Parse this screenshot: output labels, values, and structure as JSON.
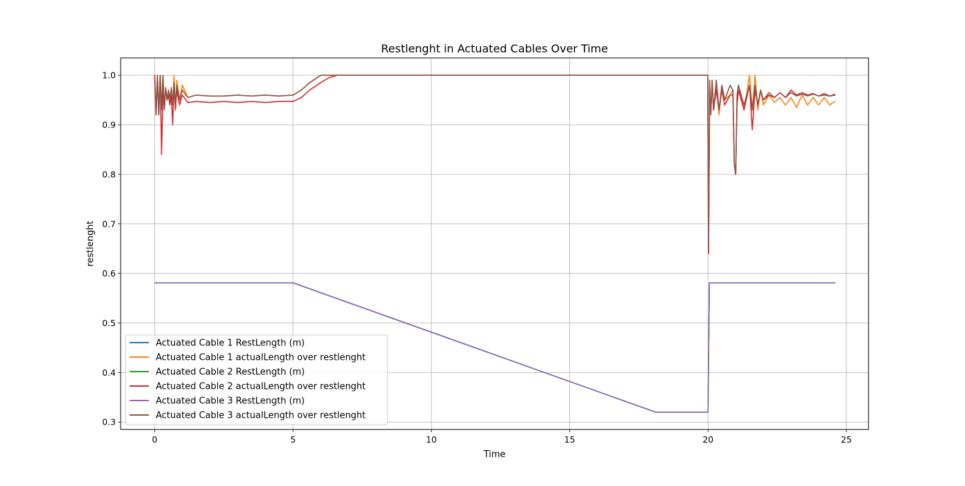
{
  "chart_data": {
    "type": "line",
    "title": "Restlenght in Actuated Cables Over Time",
    "xlabel": "Time",
    "ylabel": "restlenght",
    "xlim": [
      -1.23,
      25.8
    ],
    "ylim": [
      0.285,
      1.035
    ],
    "x_ticks": [
      0,
      5,
      10,
      15,
      20,
      25
    ],
    "y_ticks": [
      0.3,
      0.4,
      0.5,
      0.6,
      0.7,
      0.8,
      0.9,
      1.0
    ],
    "x_tick_labels": [
      "0",
      "5",
      "10",
      "15",
      "20",
      "25"
    ],
    "y_tick_labels": [
      "0.3",
      "0.4",
      "0.5",
      "0.6",
      "0.7",
      "0.8",
      "0.9",
      "1.0"
    ],
    "grid": true,
    "legend_position": "lower-left",
    "series": [
      {
        "name": "Actuated Cable 1 RestLength (m)",
        "color": "#1f77b4",
        "x": [
          0,
          5,
          18.1,
          20,
          20.05,
          24.6
        ],
        "y": [
          0.581,
          0.581,
          0.32,
          0.32,
          0.581,
          0.581
        ]
      },
      {
        "name": "Actuated Cable 1 actualLength over restlenght",
        "color": "#ff7f0e",
        "x": [
          0,
          0.05,
          0.1,
          0.15,
          0.2,
          0.25,
          0.3,
          0.35,
          0.4,
          0.45,
          0.5,
          0.55,
          0.6,
          0.65,
          0.7,
          0.75,
          0.8,
          0.9,
          1.0,
          1.2,
          1.5,
          2.0,
          2.5,
          3.0,
          3.5,
          4.0,
          4.5,
          5.0,
          5.3,
          5.6,
          6.0,
          6.3,
          6.6,
          7.0,
          10,
          15,
          19.99,
          20.02,
          20.06,
          20.1,
          20.15,
          20.2,
          20.3,
          20.4,
          20.5,
          20.6,
          20.8,
          20.9,
          20.95,
          21.0,
          21.05,
          21.1,
          21.3,
          21.5,
          21.6,
          21.7,
          21.8,
          21.9,
          22.0,
          22.2,
          22.4,
          22.6,
          22.8,
          23.0,
          23.2,
          23.4,
          23.6,
          23.8,
          24.0,
          24.2,
          24.4,
          24.6
        ],
        "y": [
          1.0,
          0.93,
          1.0,
          0.92,
          1.0,
          0.93,
          1.0,
          0.94,
          0.975,
          0.95,
          0.97,
          0.955,
          0.97,
          0.94,
          1.0,
          0.93,
          0.99,
          0.95,
          0.98,
          0.955,
          0.96,
          0.958,
          0.958,
          0.96,
          0.958,
          0.96,
          0.958,
          0.96,
          0.97,
          0.985,
          1.0,
          1.0,
          1.0,
          1.0,
          1.0,
          1.0,
          1.0,
          0.64,
          0.98,
          0.92,
          0.99,
          0.93,
          0.98,
          0.92,
          0.98,
          0.95,
          0.96,
          0.97,
          0.82,
          0.8,
          0.95,
          0.98,
          0.93,
          1.0,
          0.93,
          1.0,
          0.93,
          0.97,
          0.94,
          0.96,
          0.945,
          0.955,
          0.94,
          0.955,
          0.935,
          0.96,
          0.94,
          0.955,
          0.94,
          0.955,
          0.94,
          0.948
        ]
      },
      {
        "name": "Actuated Cable 2 RestLength (m)",
        "color": "#2ca02c",
        "x": [
          0,
          5,
          18.1,
          20,
          20.05,
          24.6
        ],
        "y": [
          0.581,
          0.581,
          0.32,
          0.32,
          0.581,
          0.581
        ]
      },
      {
        "name": "Actuated Cable 2 actualLength over restlenght",
        "color": "#d62728",
        "x": [
          0,
          0.05,
          0.1,
          0.15,
          0.2,
          0.25,
          0.3,
          0.35,
          0.4,
          0.45,
          0.5,
          0.55,
          0.6,
          0.65,
          0.7,
          0.75,
          0.8,
          0.9,
          1.0,
          1.2,
          1.5,
          2.0,
          2.5,
          3.0,
          3.5,
          4.0,
          4.5,
          5.0,
          5.3,
          5.6,
          6.0,
          6.3,
          6.6,
          7.0,
          10,
          15,
          19.99,
          20.02,
          20.06,
          20.1,
          20.15,
          20.2,
          20.3,
          20.4,
          20.5,
          20.6,
          20.8,
          20.9,
          20.95,
          21.0,
          21.05,
          21.1,
          21.3,
          21.5,
          21.6,
          21.7,
          21.8,
          21.9,
          22.0,
          22.2,
          22.4,
          22.6,
          22.8,
          23.0,
          23.2,
          23.4,
          23.6,
          23.8,
          24.0,
          24.2,
          24.4,
          24.6
        ],
        "y": [
          1.0,
          0.92,
          0.99,
          0.93,
          1.0,
          0.84,
          0.97,
          0.93,
          0.97,
          0.95,
          0.96,
          0.94,
          0.96,
          0.9,
          0.98,
          0.93,
          0.97,
          0.94,
          0.96,
          0.945,
          0.947,
          0.945,
          0.947,
          0.945,
          0.947,
          0.945,
          0.947,
          0.947,
          0.955,
          0.97,
          0.985,
          0.995,
          1.0,
          1.0,
          1.0,
          1.0,
          1.0,
          0.64,
          0.97,
          0.93,
          0.98,
          0.93,
          0.97,
          0.93,
          0.97,
          0.94,
          0.96,
          0.96,
          0.82,
          0.8,
          0.94,
          0.97,
          0.93,
          0.98,
          0.89,
          0.97,
          0.94,
          0.97,
          0.95,
          0.96,
          0.955,
          0.965,
          0.955,
          0.97,
          0.96,
          0.965,
          0.96,
          0.963,
          0.958,
          0.963,
          0.958,
          0.962
        ]
      },
      {
        "name": "Actuated Cable 3 RestLength (m)",
        "color": "#9467bd",
        "x": [
          0,
          5,
          18.1,
          20,
          20.05,
          24.6
        ],
        "y": [
          0.581,
          0.581,
          0.32,
          0.32,
          0.581,
          0.581
        ]
      },
      {
        "name": "Actuated Cable 3 actualLength over restlenght",
        "color": "#8c564b",
        "x": [
          0,
          0.05,
          0.1,
          0.15,
          0.2,
          0.25,
          0.3,
          0.35,
          0.4,
          0.45,
          0.5,
          0.55,
          0.6,
          0.65,
          0.7,
          0.75,
          0.8,
          0.9,
          1.0,
          1.2,
          1.5,
          2.0,
          2.5,
          3.0,
          3.5,
          4.0,
          4.5,
          5.0,
          5.3,
          5.6,
          6.0,
          6.3,
          6.6,
          7.0,
          10,
          15,
          19.99,
          20.02,
          20.06,
          20.1,
          20.15,
          20.2,
          20.3,
          20.4,
          20.5,
          20.6,
          20.8,
          20.9,
          20.95,
          21.0,
          21.05,
          21.1,
          21.3,
          21.5,
          21.6,
          21.7,
          21.8,
          21.9,
          22.0,
          22.2,
          22.4,
          22.6,
          22.8,
          23.0,
          23.2,
          23.4,
          23.6,
          23.8,
          24.0,
          24.2,
          24.4,
          24.6
        ],
        "y": [
          0.99,
          0.92,
          1.0,
          0.92,
          1.0,
          0.93,
          1.0,
          0.93,
          0.975,
          0.95,
          0.97,
          0.95,
          0.975,
          0.94,
          0.985,
          0.94,
          0.98,
          0.95,
          0.97,
          0.955,
          0.96,
          0.958,
          0.958,
          0.96,
          0.958,
          0.96,
          0.958,
          0.96,
          0.97,
          0.985,
          1.0,
          1.0,
          1.0,
          1.0,
          1.0,
          1.0,
          1.0,
          0.65,
          0.99,
          0.92,
          0.99,
          0.93,
          0.99,
          0.93,
          0.98,
          0.95,
          0.98,
          0.97,
          0.82,
          0.8,
          0.96,
          0.98,
          0.94,
          0.98,
          0.93,
          0.98,
          0.94,
          0.97,
          0.95,
          0.965,
          0.955,
          0.965,
          0.955,
          0.965,
          0.958,
          0.962,
          0.958,
          0.962,
          0.958,
          0.96,
          0.958,
          0.96
        ]
      }
    ]
  }
}
